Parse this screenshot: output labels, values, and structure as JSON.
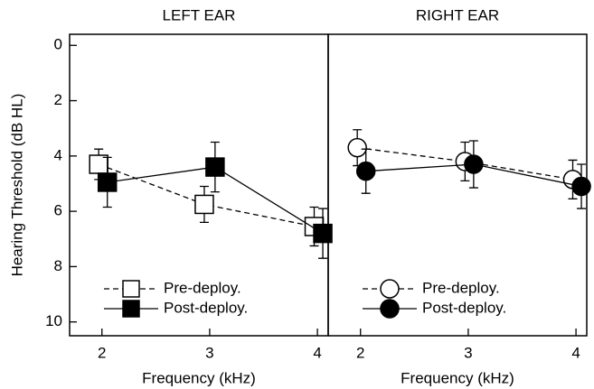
{
  "chart_data": [
    {
      "type": "line",
      "title": "LEFT EAR",
      "xlabel": "Frequency (kHz)",
      "ylabel": "Hearing Threshold (dB HL)",
      "xlim": [
        1.7,
        4.1
      ],
      "xticks": [
        2,
        3,
        4
      ],
      "ylim": [
        10.5,
        -0.4
      ],
      "yticks": [
        0,
        2,
        4,
        6,
        8,
        10
      ],
      "legend": "lower left",
      "series": [
        {
          "name": "Pre-deploy.",
          "color": "#000000",
          "marker": "square",
          "filled": false,
          "line_style": "dashed",
          "x": [
            1.97,
            2.95,
            3.97
          ],
          "values": [
            4.3,
            5.75,
            6.55
          ],
          "errors": [
            0.55,
            0.65,
            0.7
          ]
        },
        {
          "name": "Post-deploy.",
          "color": "#000000",
          "marker": "square",
          "filled": true,
          "line_style": "solid",
          "x": [
            2.05,
            3.05,
            4.05
          ],
          "values": [
            4.95,
            4.4,
            6.8
          ],
          "errors": [
            0.9,
            0.9,
            0.9
          ]
        }
      ]
    },
    {
      "type": "line",
      "title": "RIGHT EAR",
      "xlabel": "Frequency (kHz)",
      "xlim": [
        1.7,
        4.1
      ],
      "xticks": [
        2,
        3,
        4
      ],
      "ylim": [
        10.5,
        -0.4
      ],
      "legend": "lower left",
      "series": [
        {
          "name": "Pre-deploy.",
          "color": "#000000",
          "marker": "circle",
          "filled": false,
          "line_style": "dashed",
          "x": [
            1.97,
            2.97,
            3.97
          ],
          "values": [
            3.7,
            4.2,
            4.85
          ],
          "errors": [
            0.65,
            0.7,
            0.7
          ]
        },
        {
          "name": "Post-deploy.",
          "color": "#000000",
          "marker": "circle",
          "filled": true,
          "line_style": "solid",
          "x": [
            2.05,
            3.05,
            4.05
          ],
          "values": [
            4.55,
            4.3,
            5.1
          ],
          "errors": [
            0.8,
            0.85,
            0.8
          ]
        }
      ]
    }
  ]
}
